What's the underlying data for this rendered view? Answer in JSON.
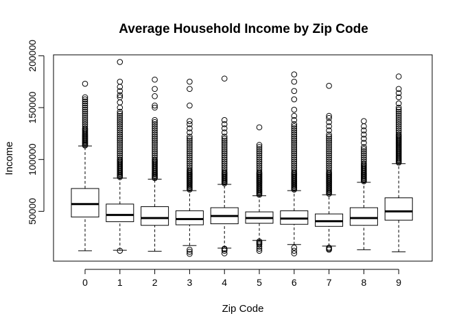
{
  "chart_data": {
    "type": "boxplot",
    "title": "Average Household Income by Zip Code",
    "xlabel": "Zip Code",
    "ylabel": "Income",
    "ylim": [
      0,
      200000
    ],
    "yticks": [
      50000,
      100000,
      150000,
      200000
    ],
    "categories": [
      "0",
      "1",
      "2",
      "3",
      "4",
      "5",
      "6",
      "7",
      "8",
      "9"
    ],
    "boxes": [
      {
        "min": 12000,
        "q1": 44500,
        "median": 57000,
        "q3": 72000,
        "max": 113000,
        "outliers": [
          113500,
          114000,
          115000,
          116000,
          117000,
          118000,
          119000,
          120000,
          121000,
          122000,
          123000,
          124000,
          125000,
          126000,
          127000,
          128000,
          129000,
          130000,
          132000,
          134000,
          136000,
          138000,
          140000,
          142000,
          144000,
          146000,
          148000,
          150000,
          152000,
          154000,
          156000,
          158000,
          160000,
          173000
        ]
      },
      {
        "min": 12500,
        "q1": 40000,
        "median": 46500,
        "q3": 57000,
        "max": 82000,
        "outliers": [
          12000,
          83000,
          84000,
          85000,
          86000,
          87000,
          88000,
          89000,
          90000,
          91000,
          92000,
          93000,
          94000,
          95000,
          96000,
          97000,
          98000,
          99000,
          100000,
          102000,
          104000,
          106000,
          108000,
          110000,
          112000,
          114000,
          116000,
          118000,
          120000,
          122000,
          124000,
          126000,
          128000,
          130000,
          132000,
          134000,
          136000,
          138000,
          140000,
          142000,
          144000,
          146000,
          150000,
          155000,
          160000,
          162000,
          166000,
          170000,
          175000,
          194000
        ]
      },
      {
        "min": 11500,
        "q1": 36500,
        "median": 43500,
        "q3": 54500,
        "max": 81000,
        "outliers": [
          82000,
          83000,
          84000,
          85000,
          86000,
          87000,
          88000,
          89000,
          90000,
          91000,
          92000,
          93000,
          94000,
          95000,
          96000,
          97000,
          98000,
          99000,
          100000,
          102000,
          104000,
          106000,
          108000,
          110000,
          112000,
          114000,
          116000,
          118000,
          120000,
          122000,
          124000,
          126000,
          128000,
          130000,
          132000,
          134000,
          136000,
          138000,
          150000,
          152000,
          161000,
          168000,
          177000
        ]
      },
      {
        "min": 17000,
        "q1": 37000,
        "median": 42500,
        "q3": 50500,
        "max": 70000,
        "outliers": [
          9000,
          11000,
          13000,
          71000,
          72000,
          73000,
          74000,
          75000,
          76000,
          77000,
          78000,
          79000,
          80000,
          81000,
          82000,
          83000,
          84000,
          85000,
          86000,
          87000,
          88000,
          89000,
          90000,
          92000,
          94000,
          96000,
          98000,
          100000,
          102000,
          104000,
          106000,
          108000,
          110000,
          112000,
          114000,
          116000,
          118000,
          120000,
          122000,
          126000,
          130000,
          134000,
          137000,
          152000,
          168000,
          175000
        ]
      },
      {
        "min": 14500,
        "q1": 38000,
        "median": 45500,
        "q3": 53500,
        "max": 76000,
        "outliers": [
          9500,
          12000,
          13500,
          14000,
          77000,
          78000,
          79000,
          80000,
          81000,
          82000,
          83000,
          84000,
          85000,
          86000,
          87000,
          88000,
          90000,
          92000,
          94000,
          96000,
          98000,
          100000,
          102000,
          104000,
          106000,
          108000,
          110000,
          112000,
          114000,
          116000,
          118000,
          120000,
          122000,
          126000,
          130000,
          134000,
          138000,
          178000
        ]
      },
      {
        "min": 22000,
        "q1": 38500,
        "median": 43500,
        "q3": 49500,
        "max": 65000,
        "outliers": [
          12000,
          14000,
          16000,
          18000,
          19000,
          20000,
          21000,
          66000,
          67000,
          68000,
          69000,
          70000,
          71000,
          72000,
          73000,
          74000,
          75000,
          76000,
          77000,
          78000,
          79000,
          80000,
          81000,
          82000,
          83000,
          84000,
          85000,
          86000,
          87000,
          88000,
          90000,
          92000,
          94000,
          96000,
          98000,
          100000,
          102000,
          104000,
          106000,
          108000,
          110000,
          112000,
          114000,
          131000
        ]
      },
      {
        "min": 18000,
        "q1": 37500,
        "median": 43000,
        "q3": 50500,
        "max": 70000,
        "outliers": [
          9500,
          12000,
          15000,
          71000,
          72000,
          73000,
          74000,
          75000,
          76000,
          77000,
          78000,
          79000,
          80000,
          81000,
          82000,
          83000,
          84000,
          85000,
          86000,
          87000,
          88000,
          90000,
          92000,
          94000,
          96000,
          98000,
          100000,
          102000,
          104000,
          106000,
          108000,
          110000,
          112000,
          114000,
          116000,
          118000,
          120000,
          122000,
          124000,
          126000,
          128000,
          130000,
          132000,
          134000,
          138000,
          142000,
          148000,
          158000,
          166000,
          175000,
          182000
        ]
      },
      {
        "min": 16500,
        "q1": 35500,
        "median": 40500,
        "q3": 47500,
        "max": 66000,
        "outliers": [
          13000,
          14000,
          15000,
          67000,
          68000,
          69000,
          70000,
          71000,
          72000,
          73000,
          74000,
          75000,
          76000,
          77000,
          78000,
          79000,
          80000,
          81000,
          82000,
          83000,
          84000,
          85000,
          86000,
          87000,
          88000,
          90000,
          92000,
          94000,
          96000,
          98000,
          100000,
          102000,
          104000,
          106000,
          108000,
          110000,
          112000,
          114000,
          116000,
          118000,
          120000,
          122000,
          124000,
          128000,
          132000,
          136000,
          140000,
          142000,
          171000
        ]
      },
      {
        "min": 13000,
        "q1": 36500,
        "median": 43500,
        "q3": 53500,
        "max": 78000,
        "outliers": [
          79000,
          80000,
          81000,
          82000,
          83000,
          84000,
          85000,
          86000,
          87000,
          88000,
          89000,
          90000,
          91000,
          92000,
          93000,
          94000,
          95000,
          96000,
          98000,
          100000,
          102000,
          104000,
          106000,
          108000,
          110000,
          112000,
          116000,
          120000,
          124000,
          128000,
          132000,
          137000
        ]
      },
      {
        "min": 11000,
        "q1": 41500,
        "median": 50000,
        "q3": 63000,
        "max": 96000,
        "outliers": [
          97000,
          98000,
          99000,
          100000,
          101000,
          102000,
          103000,
          104000,
          105000,
          106000,
          107000,
          108000,
          109000,
          110000,
          111000,
          112000,
          113000,
          114000,
          115000,
          116000,
          117000,
          118000,
          119000,
          120000,
          121000,
          122000,
          123000,
          124000,
          126000,
          128000,
          130000,
          132000,
          134000,
          136000,
          138000,
          140000,
          142000,
          144000,
          146000,
          148000,
          150000,
          154000,
          160000,
          164000,
          168000,
          180000
        ]
      }
    ]
  }
}
